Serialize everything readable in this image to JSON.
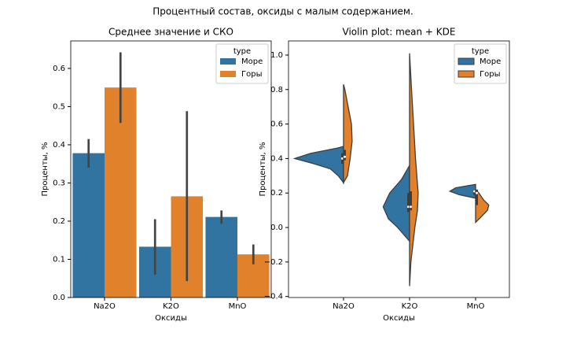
{
  "title": "Процентный состав, оксиды с малым содержанием.",
  "chart_data": [
    {
      "type": "bar",
      "title": "Среднее значение и СКО",
      "xlabel": "Оксиды",
      "ylabel": "Проценты, %",
      "categories": [
        "Na2O",
        "K2O",
        "MnO"
      ],
      "series": [
        {
          "name": "Море",
          "color": "#3274a1",
          "values": [
            0.378,
            0.133,
            0.211
          ],
          "ci_low": [
            0.34,
            0.06,
            0.193
          ],
          "ci_high": [
            0.415,
            0.205,
            0.228
          ]
        },
        {
          "name": "Горы",
          "color": "#e1812c",
          "values": [
            0.55,
            0.265,
            0.113
          ],
          "ci_low": [
            0.457,
            0.043,
            0.087
          ],
          "ci_high": [
            0.642,
            0.488,
            0.139
          ]
        }
      ],
      "ylim": [
        0,
        0.672
      ],
      "yticks": [
        {
          "value": 0,
          "label": "0.0"
        },
        0.1,
        0.2,
        0.3,
        0.4,
        0.5,
        0.6
      ],
      "legend_title": "type",
      "legend_loc": "upper right"
    },
    {
      "type": "violin",
      "title": "Violin plot: mean + KDE",
      "xlabel": "Оксиды",
      "ylabel": "Проценты, %",
      "categories": [
        "Na2O",
        "K2O",
        "MnO"
      ],
      "series": [
        {
          "name": "Море",
          "color": "#3274a1",
          "density": [
            [
              [
                0.26,
                0
              ],
              [
                0.3,
                0.08
              ],
              [
                0.34,
                0.2
              ],
              [
                0.37,
                0.45
              ],
              [
                0.4,
                0.74
              ],
              [
                0.43,
                0.5
              ],
              [
                0.46,
                0.1
              ],
              [
                0.47,
                0
              ]
            ],
            [
              [
                -0.08,
                0
              ],
              [
                0.0,
                0.18
              ],
              [
                0.05,
                0.32
              ],
              [
                0.12,
                0.4
              ],
              [
                0.2,
                0.3
              ],
              [
                0.28,
                0.12
              ],
              [
                0.36,
                0
              ]
            ],
            [
              [
                0.17,
                0
              ],
              [
                0.19,
                0.25
              ],
              [
                0.21,
                0.39
              ],
              [
                0.23,
                0.3
              ],
              [
                0.25,
                0
              ]
            ]
          ],
          "q1": [
            0.37,
            0.09,
            0.19
          ],
          "median": [
            0.4,
            0.12,
            0.21
          ],
          "q3": [
            0.43,
            0.2,
            0.22
          ]
        },
        {
          "name": "Горы",
          "color": "#e1812c",
          "density": [
            [
              [
                0.26,
                0
              ],
              [
                0.3,
                0.06
              ],
              [
                0.4,
                0.1
              ],
              [
                0.5,
                0.13
              ],
              [
                0.6,
                0.12
              ],
              [
                0.7,
                0.07
              ],
              [
                0.8,
                0.02
              ],
              [
                0.83,
                0
              ]
            ],
            [
              [
                -0.34,
                0
              ],
              [
                -0.2,
                0.02
              ],
              [
                0.0,
                0.08
              ],
              [
                0.1,
                0.12
              ],
              [
                0.2,
                0.13
              ],
              [
                0.4,
                0.09
              ],
              [
                0.6,
                0.06
              ],
              [
                0.8,
                0.03
              ],
              [
                1.01,
                0
              ]
            ],
            [
              [
                0.03,
                0
              ],
              [
                0.06,
                0.08
              ],
              [
                0.1,
                0.18
              ],
              [
                0.13,
                0.2
              ],
              [
                0.16,
                0.12
              ],
              [
                0.2,
                0.05
              ],
              [
                0.22,
                0
              ]
            ]
          ],
          "q1": [
            0.39,
            0.1,
            0.13
          ],
          "median": [
            0.41,
            0.12,
            0.2
          ],
          "q3": [
            0.45,
            0.21,
            0.22
          ]
        }
      ],
      "ylim": [
        -0.406,
        1.082
      ],
      "yticks": [
        {
          "value": -0.4,
          "label": "−0.4"
        },
        {
          "value": -0.2,
          "label": "−0.2"
        },
        {
          "value": 0,
          "label": "0.0"
        },
        0.2,
        0.4,
        0.6,
        0.8,
        {
          "value": 1,
          "label": "1.0"
        }
      ],
      "legend_title": "type",
      "legend_loc": "upper right"
    }
  ]
}
